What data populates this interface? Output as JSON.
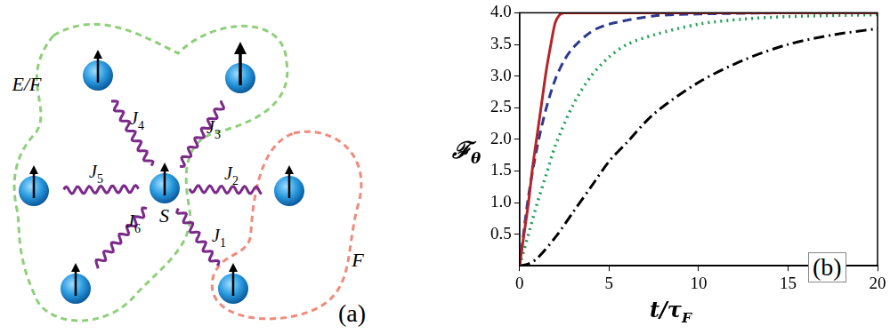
{
  "diagram": {
    "panel_label": "(a)",
    "center": {
      "label": "S"
    },
    "couplings": [
      {
        "symbol": "J",
        "index": "1"
      },
      {
        "symbol": "J",
        "index": "2"
      },
      {
        "symbol": "J",
        "index": "3"
      },
      {
        "symbol": "J",
        "index": "4"
      },
      {
        "symbol": "J",
        "index": "5"
      },
      {
        "symbol": "J",
        "index": "6"
      }
    ],
    "regions": [
      {
        "label": "E/F",
        "color": "#8fcf7a"
      },
      {
        "label": "F",
        "color": "#f08a7a"
      }
    ]
  },
  "chart_data": {
    "type": "line",
    "panel_label": "(b)",
    "x_label": {
      "text": "t/τ",
      "subscript": "F"
    },
    "y_label": {
      "text": "ℱ",
      "subscript": "θ"
    },
    "xlim": [
      0,
      20
    ],
    "xticks": [
      0,
      5,
      10,
      15,
      20
    ],
    "ylim": [
      0,
      4
    ],
    "yticks": [
      0.5,
      {
        "value": 1,
        "label": "1.0"
      },
      1.5,
      {
        "value": 2,
        "label": "2.0"
      },
      2.5,
      {
        "value": 3,
        "label": "3.0"
      },
      3.5,
      {
        "value": 4,
        "label": "4.0"
      }
    ],
    "grid": false,
    "series": [
      {
        "color": "#b5242a",
        "line_style": "solid",
        "x": [
          0,
          0.25,
          0.5,
          0.75,
          1,
          1.25,
          1.5,
          1.75,
          2,
          2.25,
          2.5,
          5,
          10,
          20
        ],
        "values": [
          0,
          0.5,
          1.0,
          1.6,
          2.1,
          2.6,
          3.1,
          3.5,
          3.85,
          3.97,
          4,
          4,
          4,
          4
        ]
      },
      {
        "color": "#2c3a8f",
        "line_style": "dashed",
        "x": [
          0,
          0.5,
          1,
          1.5,
          2,
          2.5,
          3,
          4,
          5,
          7.5,
          10,
          15,
          20
        ],
        "values": [
          0,
          1.1,
          1.9,
          2.5,
          2.95,
          3.25,
          3.45,
          3.7,
          3.82,
          3.95,
          3.98,
          4,
          4
        ]
      },
      {
        "color": "#1e9e57",
        "line_style": "dotted",
        "x": [
          0,
          0.5,
          1,
          1.5,
          2,
          3,
          4,
          5,
          6,
          7.5,
          10,
          12.5,
          15,
          20
        ],
        "values": [
          0,
          0.5,
          1.0,
          1.45,
          1.9,
          2.55,
          3.0,
          3.3,
          3.5,
          3.65,
          3.82,
          3.9,
          3.94,
          3.97
        ]
      },
      {
        "color": "#000000",
        "line_style": "dashdot",
        "x": [
          0,
          0.5,
          1,
          2,
          3,
          4,
          5,
          6,
          7.5,
          10,
          12.5,
          15,
          17.5,
          20
        ],
        "values": [
          0,
          0.03,
          0.12,
          0.45,
          0.85,
          1.25,
          1.65,
          1.95,
          2.4,
          2.9,
          3.25,
          3.5,
          3.65,
          3.75
        ]
      }
    ]
  }
}
